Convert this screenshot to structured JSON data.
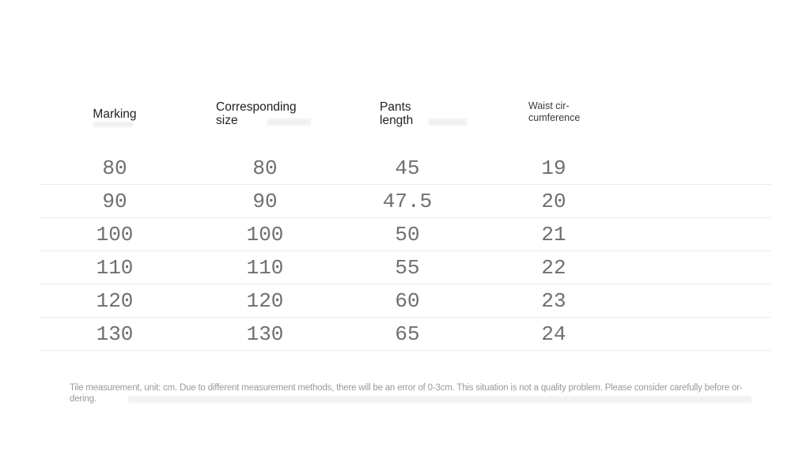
{
  "chart_data": {
    "type": "table",
    "title": "",
    "columns": [
      "Marking",
      "Corresponding size",
      "Pants length",
      "Waist circumference"
    ],
    "rows": [
      [
        "80",
        "80",
        "45",
        "19"
      ],
      [
        "90",
        "90",
        "47.5",
        "20"
      ],
      [
        "100",
        "100",
        "50",
        "21"
      ],
      [
        "110",
        "110",
        "55",
        "22"
      ],
      [
        "120",
        "120",
        "60",
        "23"
      ],
      [
        "130",
        "130",
        "65",
        "24"
      ]
    ],
    "unit": "cm",
    "note": "Tile measurement, unit: cm. Due to different measurement methods, there will be an error of 0-3cm. This situation is not a quality problem. Please consider carefully before ordering."
  },
  "header_display": {
    "col1": {
      "line1": "Marking",
      "line2": ""
    },
    "col2": {
      "line1": "Corresponding",
      "line2": "size"
    },
    "col3": {
      "line1": "Pants",
      "line2": "length"
    },
    "col4": {
      "line1": "Waist cir-",
      "line2": "cumference"
    }
  },
  "note_display": {
    "line1": "Tile measurement, unit: cm. Due to different measurement methods, there will be an error of 0-3cm. This situation is not a quality problem. Please consider carefully before or-",
    "line2": "dering."
  },
  "colors": {
    "background": "#ffffff",
    "header_text": "#212121",
    "data_text": "#6f6f6f",
    "divider": "#ececec",
    "note_text": "#9a9a9a"
  }
}
